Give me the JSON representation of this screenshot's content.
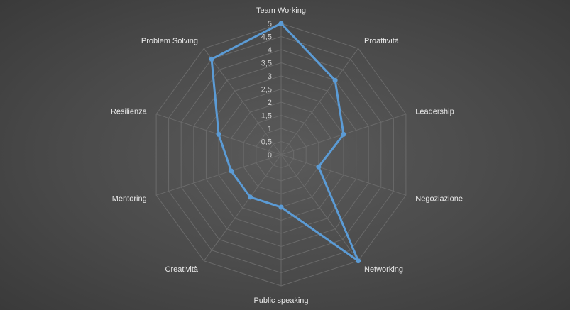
{
  "chart_data": {
    "type": "radar",
    "categories": [
      "Team Working",
      "Proattività",
      "Leadership",
      "Negoziazione",
      "Networking",
      "Public speaking",
      "Creatività",
      "Mentoring",
      "Resilienza",
      "Problem Solving"
    ],
    "series": [
      {
        "values": [
          5,
          3.5,
          2.5,
          1.5,
          5,
          2,
          2,
          2,
          2.5,
          4.5
        ],
        "color": "#5b9bd5"
      }
    ],
    "rmin": 0,
    "rmax": 5,
    "ticks": [
      "0",
      "0,5",
      "1",
      "1,5",
      "2",
      "2,5",
      "3",
      "3,5",
      "4",
      "4,5",
      "5"
    ],
    "grid": true,
    "legend": "none"
  }
}
